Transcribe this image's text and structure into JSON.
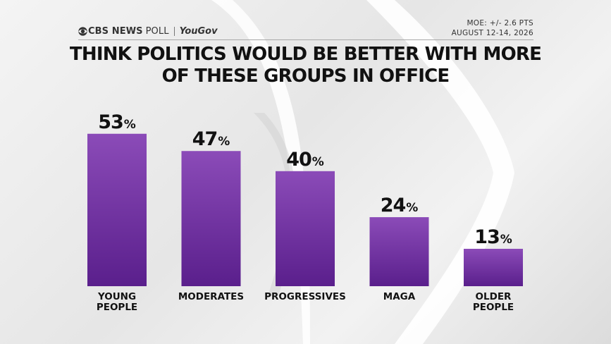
{
  "header": {
    "logo_text": "CBS NEWS",
    "poll_text": "POLL",
    "partner": "YouGov",
    "moe": "MOE: +/- 2.6 PTS",
    "dates": "AUGUST 12-14, 2026"
  },
  "chart_data": {
    "type": "bar",
    "title": [
      "THINK POLITICS WOULD BE BETTER WITH MORE",
      "OF THESE GROUPS IN OFFICE"
    ],
    "categories": [
      [
        "YOUNG",
        "PEOPLE"
      ],
      [
        "MODERATES"
      ],
      [
        "PROGRESSIVES"
      ],
      [
        "MAGA"
      ],
      [
        "OLDER",
        "PEOPLE"
      ]
    ],
    "values": [
      53,
      47,
      40,
      24,
      13
    ],
    "value_suffix": "%",
    "ylim": [
      0,
      100
    ],
    "grid": false,
    "legend": "none",
    "bar_color_top": "#8b4bb8",
    "bar_color_bottom": "#5a1f8c"
  },
  "colors": {
    "text": "#111111",
    "rule": "#a8a8a8"
  }
}
